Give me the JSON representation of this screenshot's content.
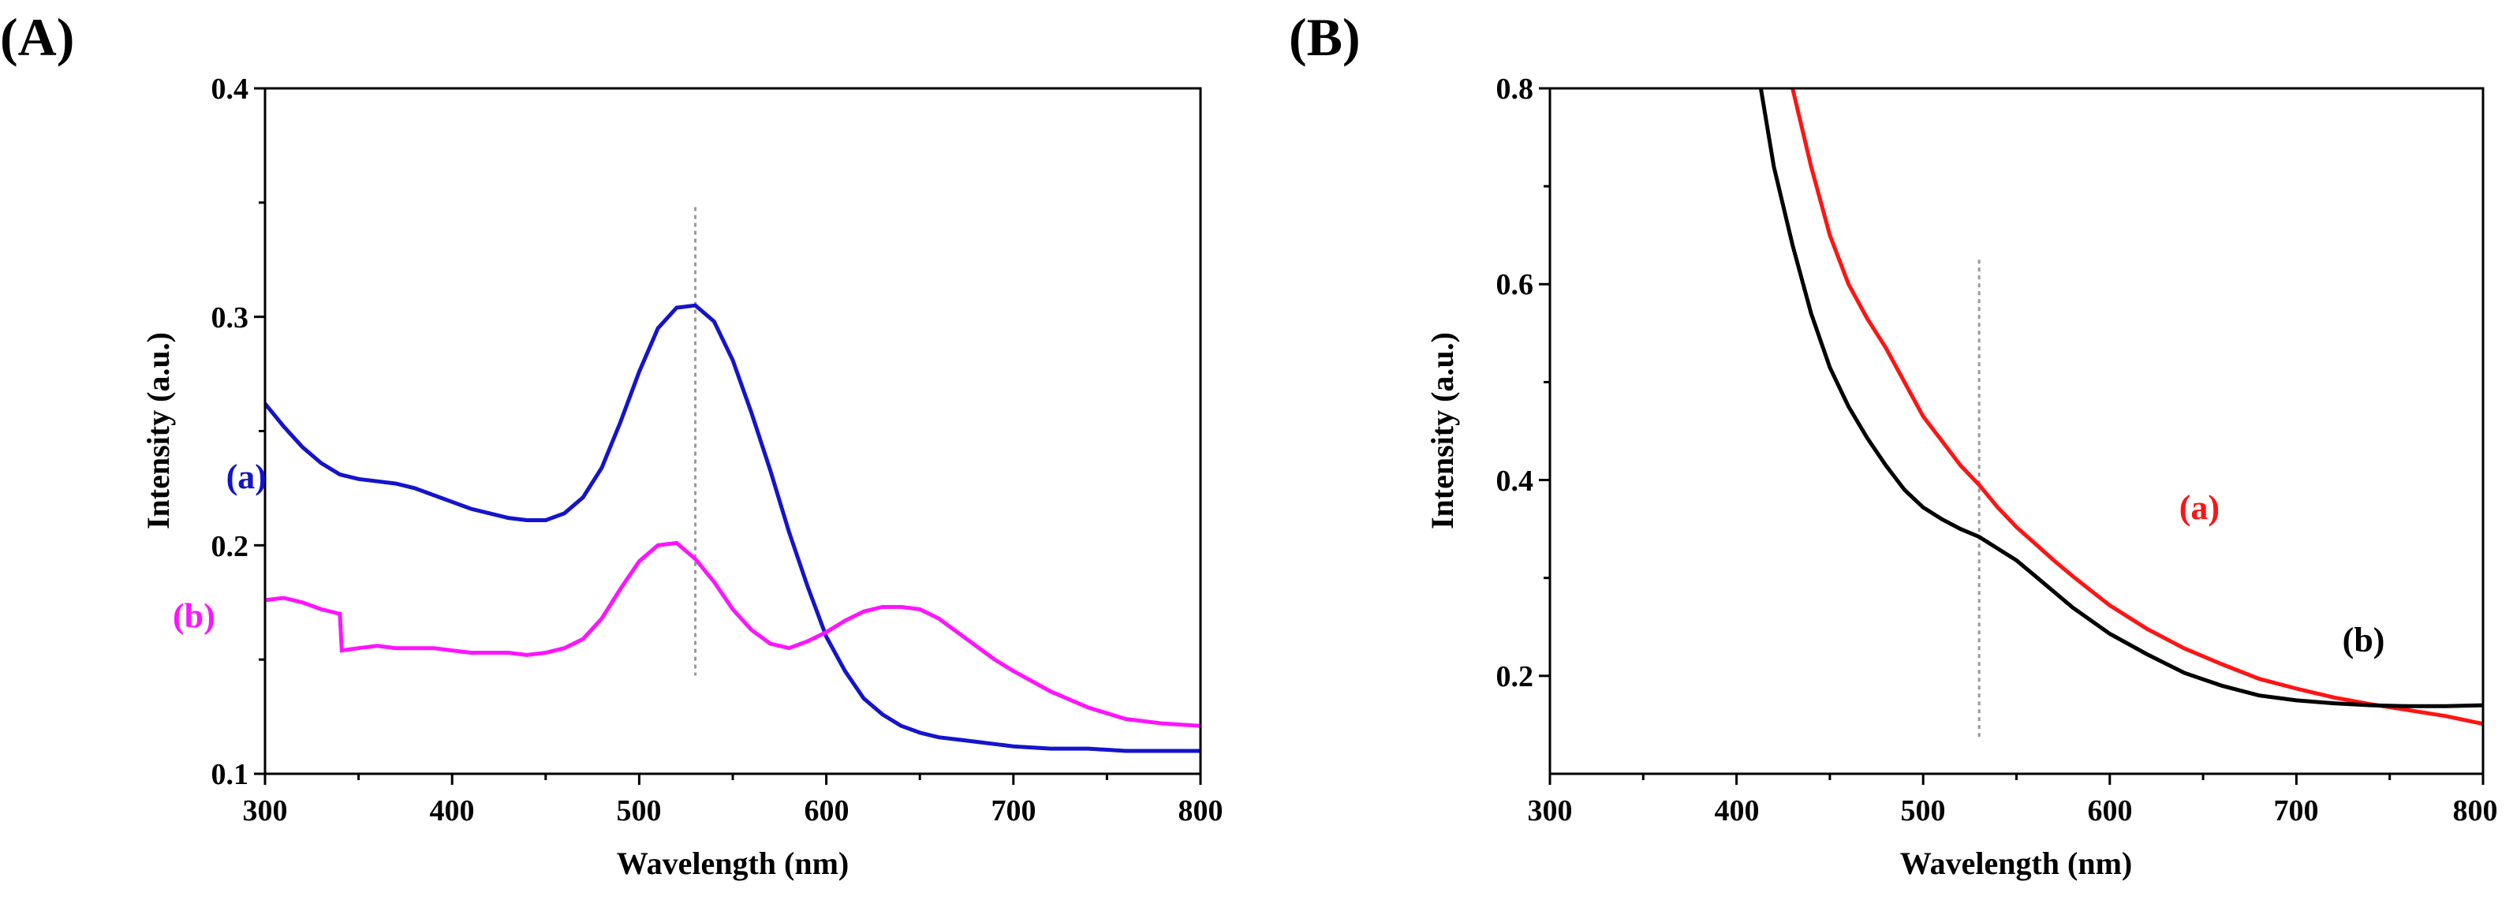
{
  "chart_data": [
    {
      "type": "line",
      "panel_label": "(A)",
      "xlabel": "Wavelength (nm)",
      "ylabel": "Intensity (a.u.)",
      "xlim": [
        300,
        800
      ],
      "ylim": [
        0.1,
        0.4
      ],
      "x_ticks": [
        300,
        400,
        500,
        600,
        700,
        800
      ],
      "y_ticks": [
        0.1,
        0.2,
        0.3,
        0.4
      ],
      "x_tick_labels": [
        "300",
        "400",
        "500",
        "600",
        "700",
        "800"
      ],
      "y_tick_labels": [
        "0.1",
        "0.2",
        "0.3",
        "0.4"
      ],
      "reference_line": {
        "x": 530,
        "y_range": [
          0.143,
          0.348
        ]
      },
      "series": [
        {
          "name": "(a)",
          "color": "#1414cc",
          "label_at": [
            290,
            0.225
          ],
          "x": [
            300,
            310,
            320,
            330,
            340,
            350,
            360,
            370,
            380,
            390,
            400,
            410,
            420,
            430,
            440,
            450,
            460,
            470,
            480,
            490,
            500,
            510,
            520,
            530,
            540,
            550,
            560,
            570,
            580,
            590,
            600,
            610,
            620,
            630,
            640,
            650,
            660,
            670,
            680,
            690,
            700,
            720,
            740,
            760,
            780,
            800
          ],
          "y": [
            0.262,
            0.252,
            0.243,
            0.236,
            0.231,
            0.229,
            0.228,
            0.227,
            0.225,
            0.222,
            0.219,
            0.216,
            0.214,
            0.212,
            0.211,
            0.211,
            0.214,
            0.221,
            0.234,
            0.254,
            0.276,
            0.295,
            0.304,
            0.305,
            0.298,
            0.281,
            0.258,
            0.233,
            0.206,
            0.182,
            0.16,
            0.145,
            0.133,
            0.126,
            0.121,
            0.118,
            0.116,
            0.115,
            0.114,
            0.113,
            0.112,
            0.111,
            0.111,
            0.11,
            0.11,
            0.11
          ]
        },
        {
          "name": "(b)",
          "color": "#ff14ff",
          "label_at": [
            262,
            0.164
          ],
          "x": [
            300,
            310,
            320,
            330,
            340,
            341,
            350,
            360,
            370,
            380,
            390,
            400,
            410,
            420,
            430,
            440,
            450,
            460,
            470,
            480,
            490,
            500,
            510,
            520,
            530,
            540,
            550,
            560,
            570,
            580,
            590,
            600,
            610,
            620,
            630,
            640,
            650,
            660,
            670,
            680,
            690,
            700,
            720,
            740,
            760,
            780,
            800
          ],
          "y": [
            0.176,
            0.177,
            0.175,
            0.172,
            0.17,
            0.154,
            0.155,
            0.156,
            0.155,
            0.155,
            0.155,
            0.154,
            0.153,
            0.153,
            0.153,
            0.152,
            0.153,
            0.155,
            0.159,
            0.168,
            0.181,
            0.193,
            0.2,
            0.201,
            0.194,
            0.184,
            0.172,
            0.163,
            0.157,
            0.155,
            0.158,
            0.162,
            0.167,
            0.171,
            0.173,
            0.173,
            0.172,
            0.168,
            0.162,
            0.156,
            0.15,
            0.145,
            0.136,
            0.129,
            0.124,
            0.122,
            0.121
          ]
        }
      ]
    },
    {
      "type": "line",
      "panel_label": "(B)",
      "xlabel": "Wavelength (nm)",
      "ylabel": "Intensity (a.u.)",
      "xlim": [
        300,
        800
      ],
      "ylim": [
        0.1,
        0.8
      ],
      "x_ticks": [
        300,
        400,
        500,
        600,
        700,
        800
      ],
      "y_ticks": [
        0.2,
        0.4,
        0.6,
        0.8
      ],
      "x_tick_labels": [
        "300",
        "400",
        "500",
        "600",
        "700",
        "800"
      ],
      "y_tick_labels": [
        "0.2",
        "0.4",
        "0.6",
        "0.8"
      ],
      "reference_line": {
        "x": 530,
        "y_range": [
          0.135,
          0.625
        ]
      },
      "series": [
        {
          "name": "(a)",
          "color": "#ff1414",
          "label_at": [
            648,
            0.36
          ],
          "x": [
            430,
            440,
            450,
            460,
            470,
            480,
            490,
            500,
            510,
            520,
            530,
            540,
            550,
            560,
            570,
            580,
            590,
            600,
            620,
            640,
            660,
            680,
            700,
            720,
            740,
            760,
            780,
            800
          ],
          "y": [
            0.8,
            0.72,
            0.65,
            0.6,
            0.565,
            0.535,
            0.5,
            0.465,
            0.44,
            0.415,
            0.395,
            0.372,
            0.352,
            0.335,
            0.318,
            0.302,
            0.287,
            0.272,
            0.248,
            0.228,
            0.212,
            0.197,
            0.187,
            0.178,
            0.171,
            0.165,
            0.159,
            0.151
          ]
        },
        {
          "name": "(b)",
          "color": "#000000",
          "label_at": [
            736,
            0.225
          ],
          "x": [
            413,
            420,
            430,
            440,
            450,
            460,
            470,
            480,
            490,
            500,
            510,
            520,
            530,
            540,
            550,
            560,
            580,
            600,
            620,
            640,
            660,
            680,
            700,
            720,
            740,
            760,
            780,
            800
          ],
          "y": [
            0.8,
            0.72,
            0.64,
            0.57,
            0.515,
            0.475,
            0.443,
            0.415,
            0.39,
            0.372,
            0.36,
            0.35,
            0.342,
            0.33,
            0.318,
            0.302,
            0.27,
            0.243,
            0.222,
            0.203,
            0.19,
            0.18,
            0.175,
            0.172,
            0.17,
            0.169,
            0.169,
            0.17
          ]
        }
      ]
    }
  ]
}
